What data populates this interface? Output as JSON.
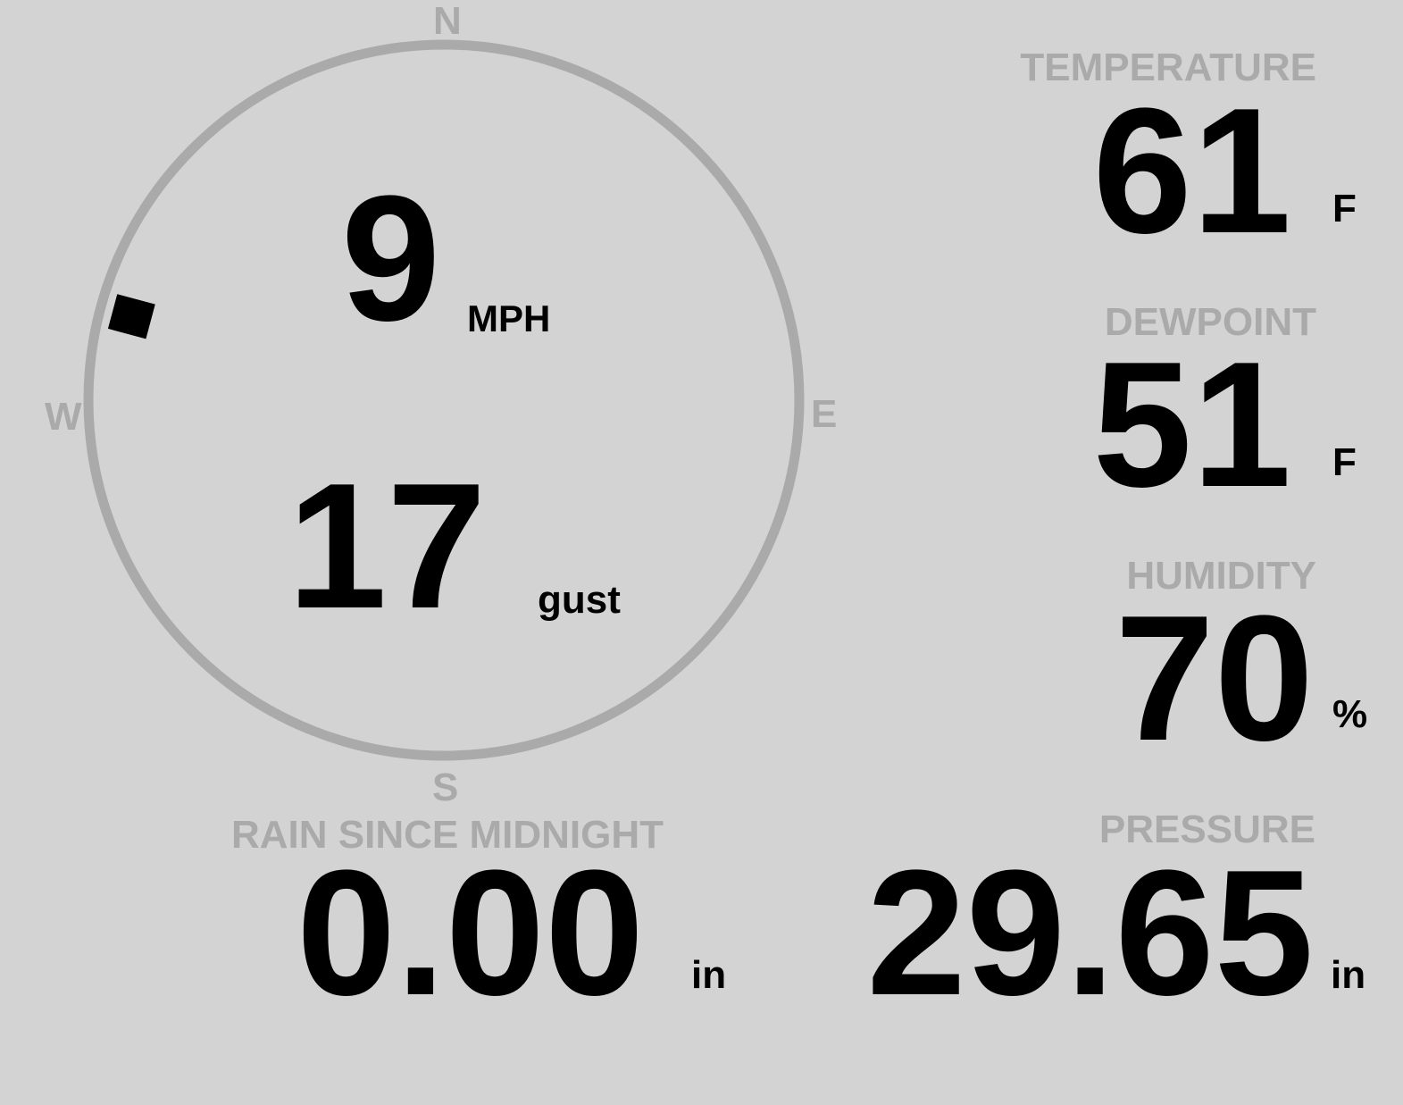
{
  "wind": {
    "compass": {
      "n": "N",
      "e": "E",
      "s": "S",
      "w": "W"
    },
    "direction_deg": 285,
    "speed": "9",
    "speed_unit": "MPH",
    "gust": "17",
    "gust_label": "gust"
  },
  "temperature": {
    "label": "TEMPERATURE",
    "value": "61",
    "unit": "F"
  },
  "dewpoint": {
    "label": "DEWPOINT",
    "value": "51",
    "unit": "F"
  },
  "humidity": {
    "label": "HUMIDITY",
    "value": "70",
    "unit": "%"
  },
  "rain": {
    "label": "RAIN SINCE MIDNIGHT",
    "value": "0.00",
    "unit": "in"
  },
  "pressure": {
    "label": "PRESSURE",
    "value": "29.65",
    "unit": "in"
  },
  "colors": {
    "background": "#d3d3d3",
    "muted": "#aaaaaa",
    "text": "#000000"
  }
}
